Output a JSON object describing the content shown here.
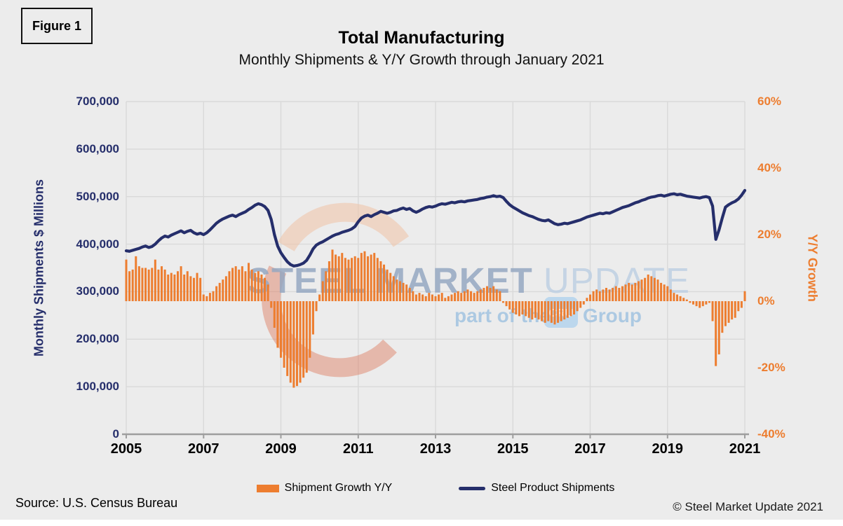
{
  "figure_label": "Figure 1",
  "title": "Total Manufacturing",
  "subtitle": "Monthly Shipments & Y/Y Growth through January 2021",
  "source": "Source: U.S. Census Bureau",
  "copyright": "© Steel Market Update 2021",
  "watermark": {
    "brand_bold": "STEEL MARKET",
    "brand_light": "UPDATE",
    "part_of": "part of the",
    "cru": "CRU",
    "group": "Group"
  },
  "colors": {
    "navy": "#252E6B",
    "orange": "#ED7D2F",
    "grid": "#D9D9D9",
    "axis_line": "#9E9E9E",
    "background": "#ECECEC",
    "watermark_bold": "#96A8C2",
    "watermark_light": "#BFD0E3",
    "watermark_blue": "#A6C6E1",
    "cru_box": "#B9D6ED",
    "swoosh_peach": "#F1C3A6",
    "swoosh_red": "#DB6F50"
  },
  "chart_data": {
    "type": "bar+line combo, dual axis",
    "frequency": "monthly",
    "x_start": "2005-01",
    "x_end": "2021-01",
    "x_tick_labels": [
      "2005",
      "2007",
      "2009",
      "2011",
      "2013",
      "2015",
      "2017",
      "2019",
      "2021"
    ],
    "left_axis": {
      "title": "Monthly Shipments $ Millions",
      "min": 0,
      "max": 700000,
      "step": 100000,
      "tick_labels": [
        "0",
        "100,000",
        "200,000",
        "300,000",
        "400,000",
        "500,000",
        "600,000",
        "700,000"
      ]
    },
    "right_axis": {
      "title": "Y/Y Growth",
      "min": -40,
      "max": 60,
      "step": 20,
      "tick_labels": [
        "-40%",
        "-20%",
        "0%",
        "20%",
        "40%",
        "60%"
      ]
    },
    "series": [
      {
        "name": "Shipment Growth Y/Y",
        "type": "bar",
        "axis": "right",
        "unit": "percent",
        "color": "#ED7D2F",
        "values": [
          12.5,
          9,
          9.5,
          13.5,
          10.5,
          10,
          10,
          9.5,
          10,
          12.5,
          9.5,
          10.5,
          9.5,
          8,
          8.5,
          8,
          9,
          10.5,
          8,
          9,
          7.5,
          7,
          8.5,
          7,
          2,
          1.5,
          2.5,
          3,
          4.5,
          5.5,
          6.5,
          7.5,
          9,
          10,
          10.5,
          9.5,
          10.5,
          9,
          11.5,
          9.5,
          8.5,
          9,
          8,
          7,
          5,
          -2,
          -8,
          -14,
          -17,
          -20,
          -22.5,
          -24.5,
          -26,
          -25.5,
          -24.5,
          -23,
          -21.5,
          -17,
          -10,
          -3,
          2,
          6,
          9,
          12,
          15.5,
          14,
          13.5,
          14.5,
          13,
          12.5,
          13,
          13.5,
          13,
          14.5,
          15,
          13.5,
          14,
          14.5,
          13,
          12,
          11,
          9.5,
          8.5,
          7.5,
          6.5,
          6,
          5.5,
          5,
          4,
          3,
          2,
          2.5,
          2,
          1.5,
          2.5,
          2,
          1.5,
          2,
          2.5,
          1,
          1.5,
          2,
          2.5,
          3,
          2.5,
          3,
          3.5,
          3,
          2.5,
          3,
          3.5,
          4,
          4.5,
          4,
          4.5,
          3.5,
          3,
          -0.5,
          -1.5,
          -2.5,
          -3.5,
          -4,
          -4.5,
          -4,
          -4.5,
          -5,
          -5.5,
          -5,
          -5.5,
          -6,
          -6.5,
          -6,
          -6.5,
          -7,
          -6.5,
          -6,
          -5.5,
          -5,
          -4.5,
          -4,
          -3,
          -2,
          -1,
          1,
          2,
          3,
          3.5,
          3,
          3.5,
          4,
          3.5,
          4,
          4.5,
          4,
          4.5,
          5,
          5.5,
          5,
          5.5,
          6,
          6.5,
          7,
          8,
          7.5,
          7,
          6.5,
          5.5,
          5,
          4.5,
          3.5,
          2.5,
          2,
          1.5,
          1,
          0.5,
          -0.5,
          -1,
          -1.5,
          -2,
          -1.5,
          -1,
          -0.5,
          -6,
          -19.5,
          -16,
          -9.5,
          -7.5,
          -6.5,
          -5.5,
          -5,
          -3,
          -2,
          3
        ]
      },
      {
        "name": "Steel Product Shipments",
        "type": "line",
        "axis": "left",
        "unit": "USD millions",
        "color": "#252E6B",
        "values": [
          386000,
          385000,
          387000,
          389000,
          391000,
          394000,
          396000,
          393000,
          395000,
          400000,
          407000,
          413000,
          417000,
          415000,
          419000,
          422000,
          425000,
          428000,
          424000,
          427000,
          429000,
          424000,
          421000,
          423000,
          420000,
          424000,
          430000,
          437000,
          444000,
          449000,
          453000,
          456000,
          459000,
          461000,
          458000,
          462000,
          465000,
          468000,
          473000,
          477000,
          482000,
          485000,
          483000,
          479000,
          471000,
          452000,
          420000,
          396000,
          382000,
          372000,
          363000,
          357000,
          354000,
          355000,
          357000,
          360000,
          366000,
          377000,
          390000,
          398000,
          402000,
          405000,
          409000,
          413000,
          417000,
          420000,
          422000,
          425000,
          427000,
          429000,
          432000,
          437000,
          447000,
          455000,
          459000,
          461000,
          458000,
          462000,
          465000,
          469000,
          467000,
          465000,
          467000,
          470000,
          471000,
          474000,
          476000,
          473000,
          475000,
          470000,
          467000,
          470000,
          474000,
          477000,
          479000,
          478000,
          480000,
          483000,
          485000,
          484000,
          486000,
          488000,
          487000,
          489000,
          490000,
          489000,
          491000,
          492000,
          493000,
          494000,
          496000,
          497000,
          499000,
          500000,
          502000,
          500000,
          501000,
          498000,
          490000,
          483000,
          478000,
          474000,
          470000,
          466000,
          463000,
          460000,
          458000,
          455000,
          452000,
          450000,
          449000,
          451000,
          447000,
          443000,
          441000,
          442000,
          444000,
          443000,
          445000,
          447000,
          449000,
          451000,
          454000,
          457000,
          459000,
          461000,
          463000,
          465000,
          464000,
          466000,
          465000,
          468000,
          471000,
          474000,
          477000,
          479000,
          481000,
          484000,
          487000,
          489000,
          492000,
          494000,
          497000,
          499000,
          500000,
          502000,
          503000,
          501000,
          503000,
          505000,
          506000,
          504000,
          505000,
          503000,
          501000,
          500000,
          499000,
          498000,
          497000,
          499000,
          500000,
          498000,
          480000,
          410000,
          430000,
          455000,
          478000,
          483000,
          487000,
          490000,
          495000,
          503000,
          513000
        ]
      }
    ],
    "legend_position": "bottom",
    "grid": true
  }
}
